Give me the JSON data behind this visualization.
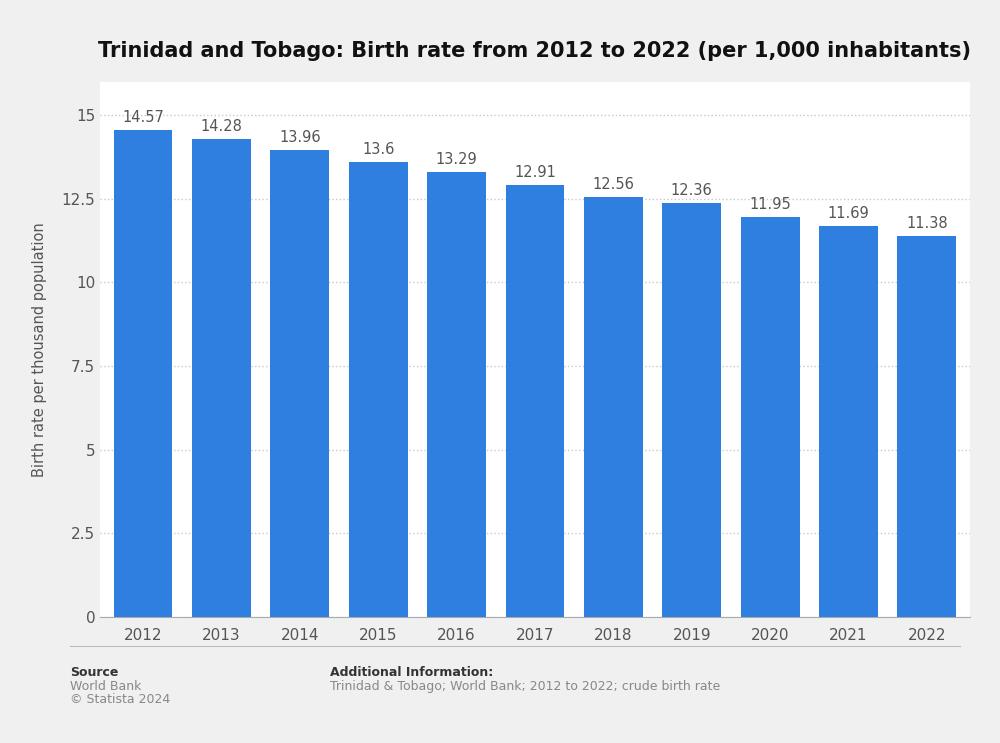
{
  "title": "Trinidad and Tobago: Birth rate from 2012 to 2022 (per 1,000 inhabitants)",
  "years": [
    2012,
    2013,
    2014,
    2015,
    2016,
    2017,
    2018,
    2019,
    2020,
    2021,
    2022
  ],
  "values": [
    14.57,
    14.28,
    13.96,
    13.6,
    13.29,
    12.91,
    12.56,
    12.36,
    11.95,
    11.69,
    11.38
  ],
  "bar_color": "#2E7FE0",
  "ylabel": "Birth rate per thousand population",
  "ylim": [
    0,
    16
  ],
  "yticks": [
    0,
    2.5,
    5,
    7.5,
    10,
    12.5,
    15
  ],
  "figure_background": "#f0f0f0",
  "plot_background": "#ffffff",
  "grid_color": "#c8c8c8",
  "source_label": "Source",
  "source_text": "World Bank",
  "copyright_text": "© Statista 2024",
  "add_info_label": "Additional Information:",
  "add_info_text": "Trinidad & Tobago; World Bank; 2012 to 2022; crude birth rate",
  "title_fontsize": 15,
  "label_fontsize": 10.5,
  "tick_fontsize": 11,
  "value_fontsize": 10.5,
  "footer_fontsize": 9
}
